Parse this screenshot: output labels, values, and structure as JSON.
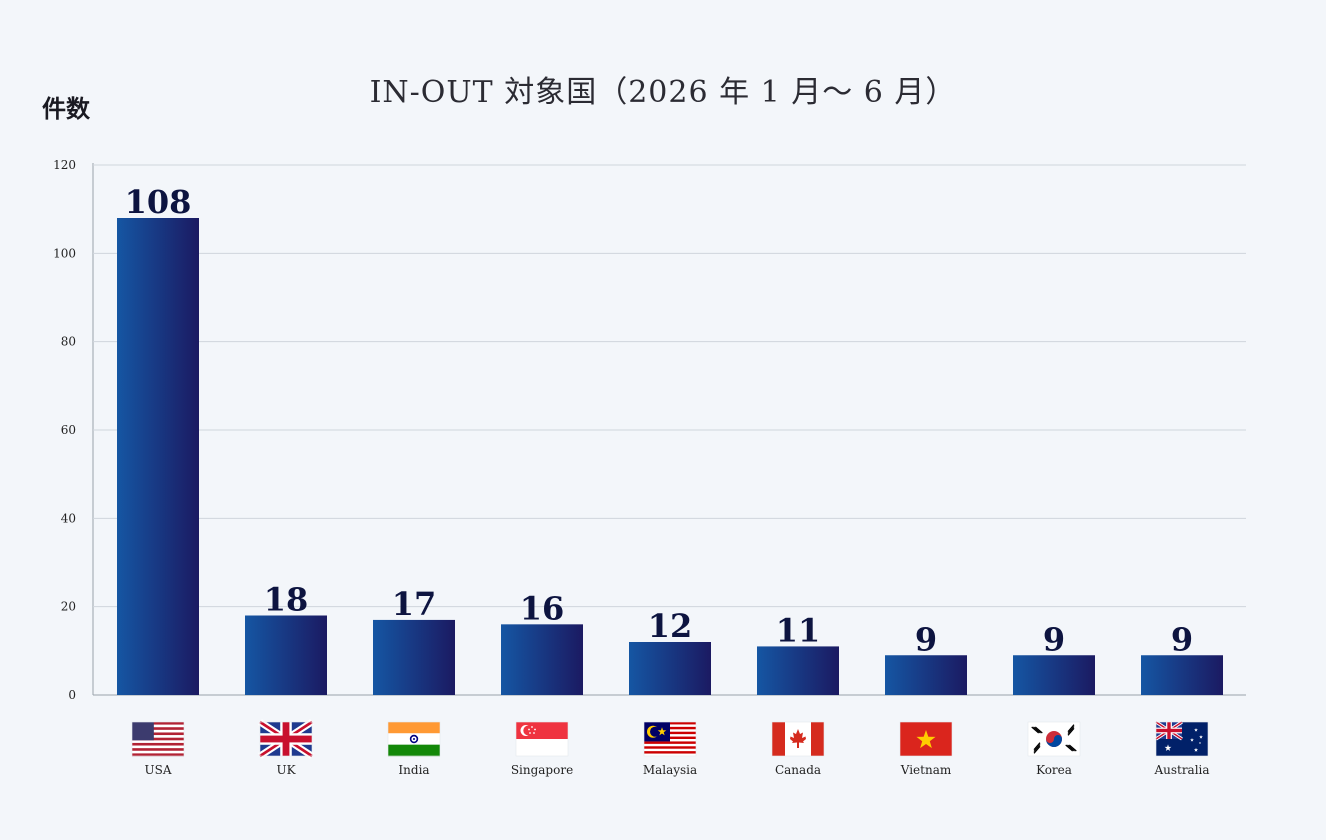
{
  "chart_data": {
    "type": "bar",
    "title": "IN-OUT 対象国（2026 年 1 月〜 6 月）",
    "ylabel": "件数",
    "xlabel": "",
    "ylim": [
      0,
      120
    ],
    "yticks": [
      0,
      20,
      40,
      60,
      80,
      100,
      120
    ],
    "grid": true,
    "categories": [
      "USA",
      "UK",
      "India",
      "Singapore",
      "Malaysia",
      "Canada",
      "Vietnam",
      "Korea",
      "Australia"
    ],
    "values": [
      108,
      18,
      17,
      16,
      12,
      11,
      9,
      9,
      9
    ],
    "flags": [
      "flag-usa-icon",
      "flag-uk-icon",
      "flag-india-icon",
      "flag-singapore-icon",
      "flag-malaysia-icon",
      "flag-canada-icon",
      "flag-vietnam-icon",
      "flag-korea-icon",
      "flag-australia-icon"
    ],
    "colors": {
      "bar_left": "#1556a3",
      "bar_right": "#1b1a62",
      "value_text": "#0d1440",
      "grid": "#cfd5dc"
    }
  }
}
